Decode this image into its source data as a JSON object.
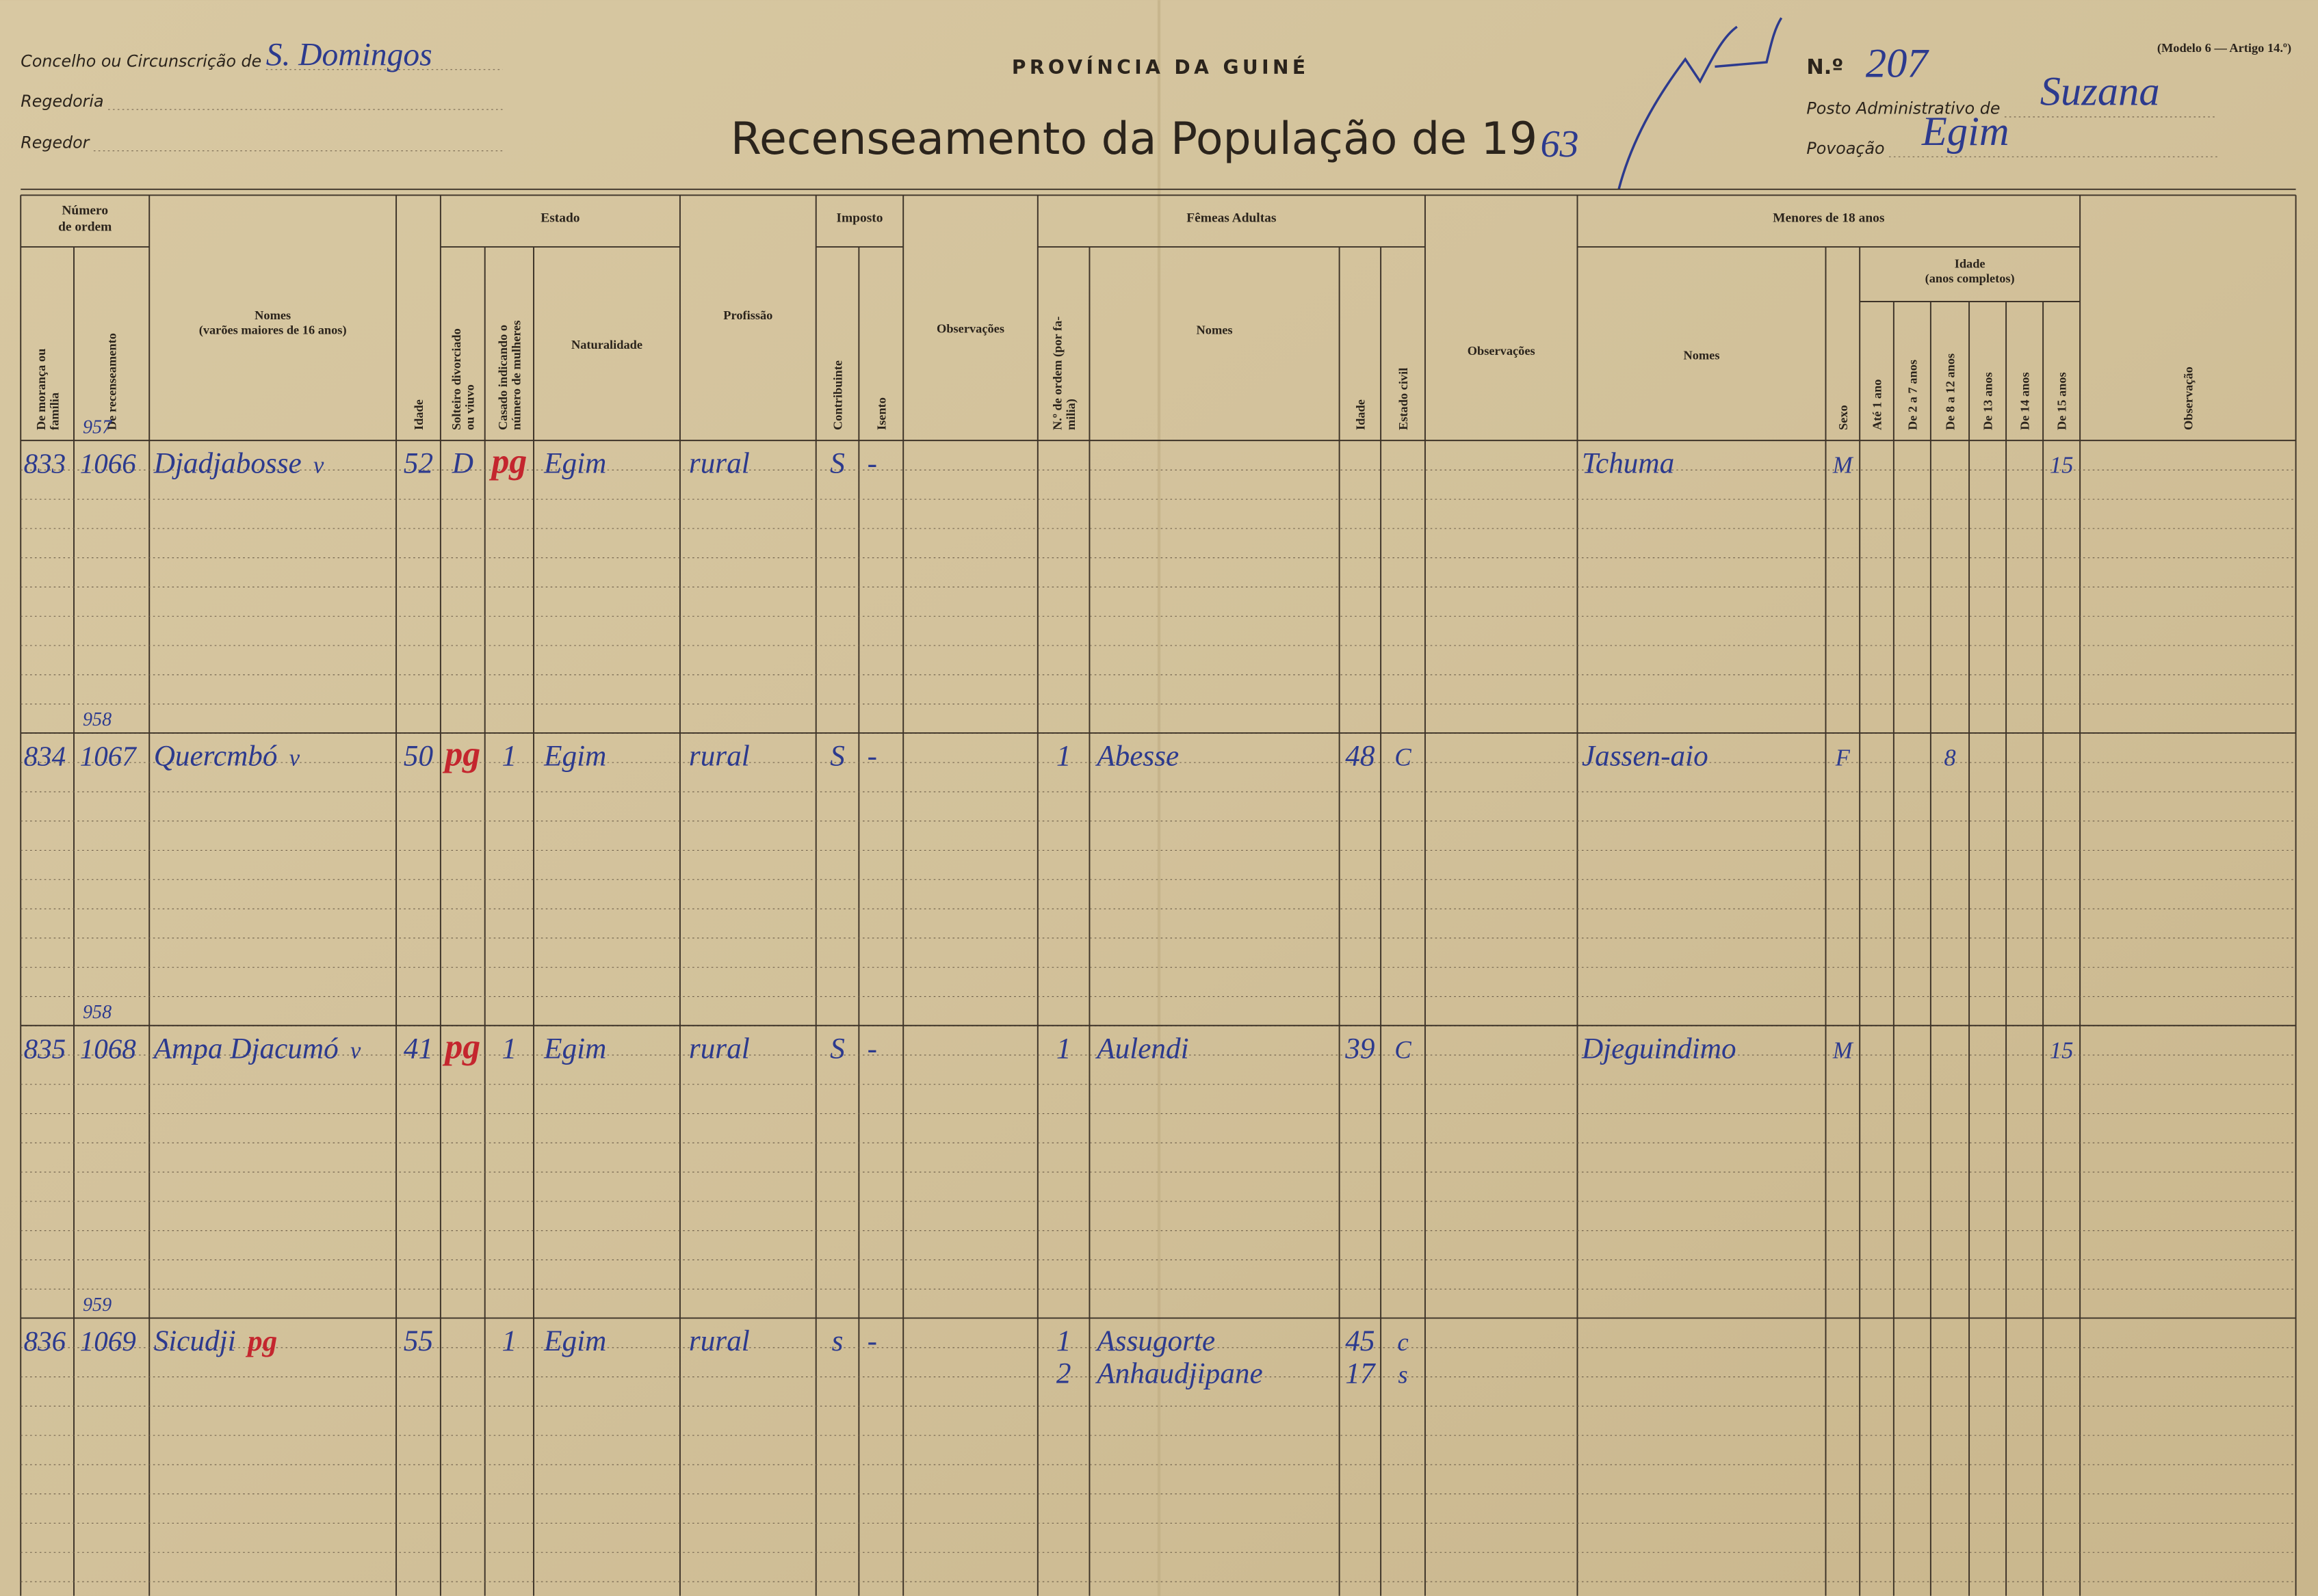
{
  "header": {
    "fields_left": [
      {
        "label": "Concelho ou Circunscrição de",
        "value": "S. Domingos"
      },
      {
        "label": "Regedoria"
      },
      {
        "label": "Regedor"
      }
    ],
    "province": "PROVÍNCIA DA GUINÉ",
    "title": "Recenseamento da População de 19",
    "year": "63",
    "model": "(Modelo 6 — Artigo 14.º)",
    "number_label": "N.º",
    "number": "207",
    "fields_right": [
      {
        "label": "Posto Administrativo de",
        "value": "Suzana"
      },
      {
        "label": "Povoação",
        "value": "Egim"
      }
    ]
  },
  "table": {
    "groups": [
      [
        "Número",
        "de ordem"
      ],
      [
        "Estado"
      ],
      [
        "Imposto"
      ],
      [
        "Fêmeas Adultas"
      ],
      [
        "Menores de 18 anos"
      ]
    ],
    "subgroup": [
      "Idade",
      "(anos completos)"
    ],
    "columns": [
      [
        "De morança ou",
        "família"
      ],
      [
        "De recenseamento"
      ],
      [
        "Nomes",
        "(varões maiores de 16 anos)"
      ],
      [
        "Idade"
      ],
      [
        "Solteiro divorciado",
        "ou viuvo"
      ],
      [
        "Casado indicando o",
        "número de mulheres"
      ],
      [
        "Naturalidade"
      ],
      [
        "Profissão"
      ],
      [
        "Contribuinte"
      ],
      [
        "Isento"
      ],
      [
        "Observações"
      ],
      [
        "N.º de ordem (por fa-",
        "milia)"
      ],
      [
        "Nomes"
      ],
      [
        "Idade"
      ],
      [
        "Estado civil"
      ],
      [
        "Observações"
      ],
      [
        "Nomes"
      ],
      [
        "Sexo"
      ],
      [
        "Até 1 ano"
      ],
      [
        "De 2 a 7 anos"
      ],
      [
        "De 8 a 12 anos"
      ],
      [
        "De 13 anos"
      ],
      [
        "De 14 anos"
      ],
      [
        "De 15 anos"
      ],
      [
        "Observação"
      ]
    ],
    "rows": [
      {
        "note": "957",
        "household": "833",
        "census": "1066",
        "name": "Djadjabosse",
        "check": "v",
        "age": "52",
        "single": "D",
        "married": {
          "text": "pg",
          "color": "#c4262e"
        },
        "origin": "Egim",
        "profession": "rural",
        "taxpayer": "S",
        "exempt": "-",
        "women": [],
        "minors": [
          {
            "name": "Tchuma",
            "sex": "M",
            "ages": [
              null,
              null,
              null,
              null,
              null,
              15
            ]
          }
        ]
      },
      {
        "note": "958",
        "household": "834",
        "census": "1067",
        "name": "Quercmbó",
        "check": "v",
        "age": "50",
        "single": {
          "text": "pg",
          "color": "#c4262e"
        },
        "married": "1",
        "origin": "Egim",
        "profession": "rural",
        "taxpayer": "S",
        "exempt": "-",
        "women": [
          {
            "order": "1",
            "name": "Abesse",
            "age": "48",
            "civil": "C"
          }
        ],
        "minors": [
          {
            "name": "Jassen-aio",
            "sex": "F",
            "ages": [
              null,
              null,
              8,
              null,
              null,
              null
            ]
          }
        ]
      },
      {
        "note": "958",
        "household": "835",
        "census": "1068",
        "name": "Ampa Djacumó",
        "check": "v",
        "age": "41",
        "single": {
          "text": "pg",
          "color": "#c4262e"
        },
        "married": "1",
        "origin": "Egim",
        "profession": "rural",
        "taxpayer": "S",
        "exempt": "-",
        "women": [
          {
            "order": "1",
            "name": "Aulendi",
            "age": "39",
            "civil": "C"
          }
        ],
        "minors": [
          {
            "name": "Djeguindimo",
            "sex": "M",
            "ages": [
              null,
              null,
              null,
              null,
              null,
              15
            ]
          }
        ]
      },
      {
        "note": "959",
        "household": "836",
        "census": "1069",
        "name": "Sicudji",
        "check": {
          "text": "pg",
          "color": "#c4262e"
        },
        "age": "55",
        "married": "1",
        "origin": "Egim",
        "profession": "rural",
        "taxpayer": "s",
        "exempt": "-",
        "women": [
          {
            "order": "1",
            "name": "Assugorte",
            "age": "45",
            "civil": "c"
          },
          {
            "order": "2",
            "name": "Anhaudjipane",
            "age": "17",
            "civil": "s"
          }
        ],
        "minors": []
      }
    ]
  }
}
